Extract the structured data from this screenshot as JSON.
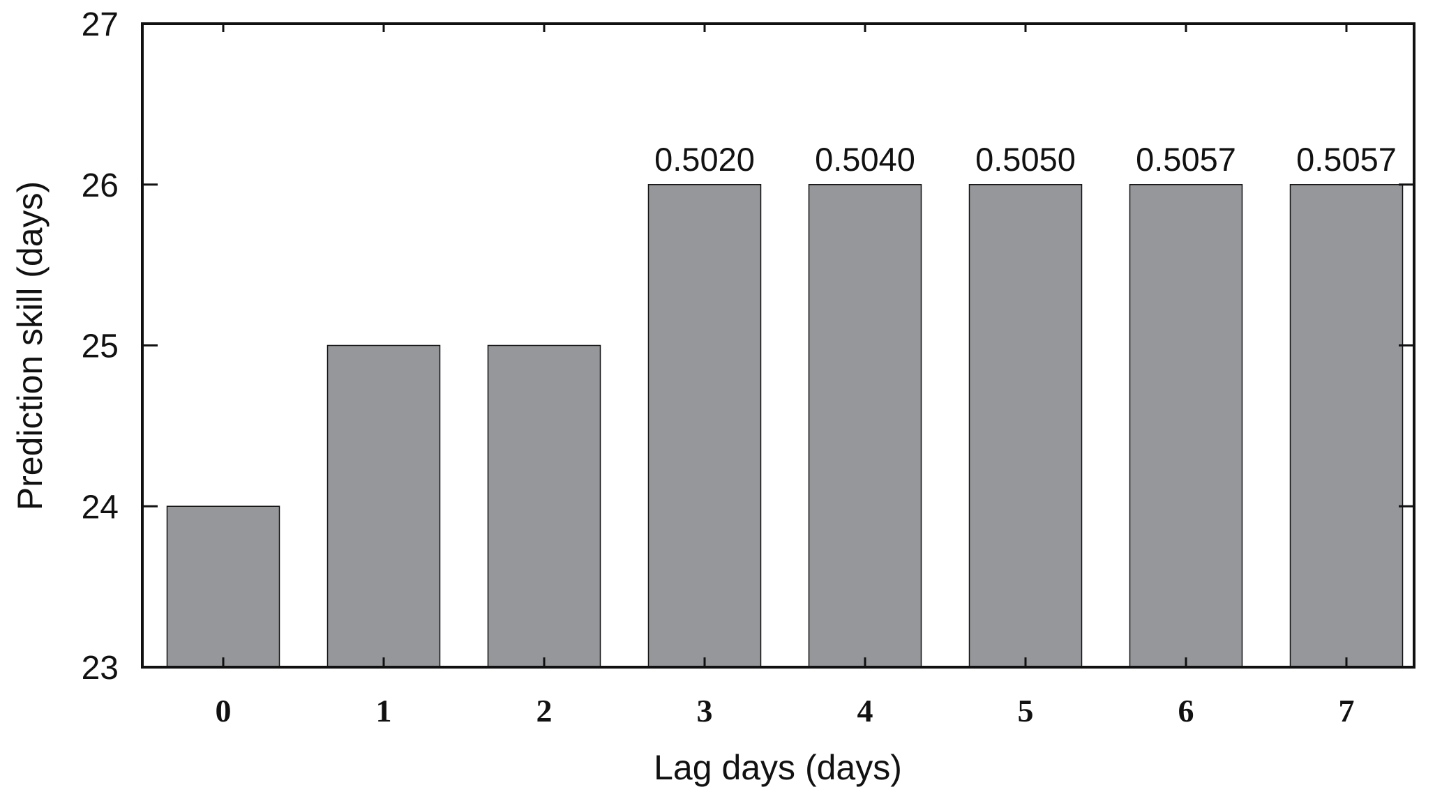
{
  "chart_data": {
    "type": "bar",
    "title": "",
    "xlabel": "Lag days (days)",
    "ylabel": "Prediction skill (days)",
    "categories": [
      "0",
      "1",
      "2",
      "3",
      "4",
      "5",
      "6",
      "7"
    ],
    "values": [
      24,
      25,
      25,
      26,
      26,
      26,
      26,
      26
    ],
    "data_labels": [
      "",
      "",
      "",
      "0.5020",
      "0.5040",
      "0.5050",
      "0.5057",
      "0.5057"
    ],
    "ylim": [
      23,
      27
    ],
    "yticks": [
      "23",
      "24",
      "25",
      "26",
      "27"
    ],
    "grid": false,
    "bar_color": "#96979b"
  }
}
